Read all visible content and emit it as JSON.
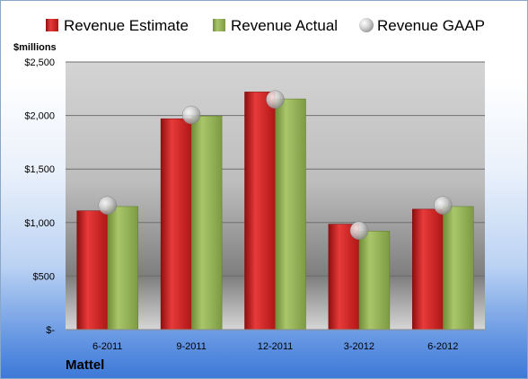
{
  "chart_data": {
    "type": "bar",
    "ylabel": "$millions",
    "categories": [
      "6-2011",
      "9-2011",
      "12-2011",
      "3-2012",
      "6-2012"
    ],
    "series": [
      {
        "name": "Revenue Estimate",
        "kind": "bar",
        "color": "#cc1f1f",
        "values": [
          1110,
          1970,
          2220,
          985,
          1125
        ]
      },
      {
        "name": "Revenue Actual",
        "kind": "bar",
        "color": "#8fb050",
        "values": [
          1150,
          1995,
          2155,
          920,
          1150
        ]
      },
      {
        "name": "Revenue GAAP",
        "kind": "marker",
        "color": "#b5b5b5",
        "values": [
          1160,
          2005,
          2150,
          925,
          1160
        ]
      }
    ],
    "yticks": [
      {
        "value": 0,
        "label": "$-"
      },
      {
        "value": 500,
        "label": "$500"
      },
      {
        "value": 1000,
        "label": "$1,000"
      },
      {
        "value": 1500,
        "label": "$1,500"
      },
      {
        "value": 2000,
        "label": "$2,000"
      },
      {
        "value": 2500,
        "label": "$2,500"
      }
    ],
    "ylim": [
      0,
      2500
    ],
    "grid": true,
    "legend": "top",
    "company": "Mattel"
  }
}
